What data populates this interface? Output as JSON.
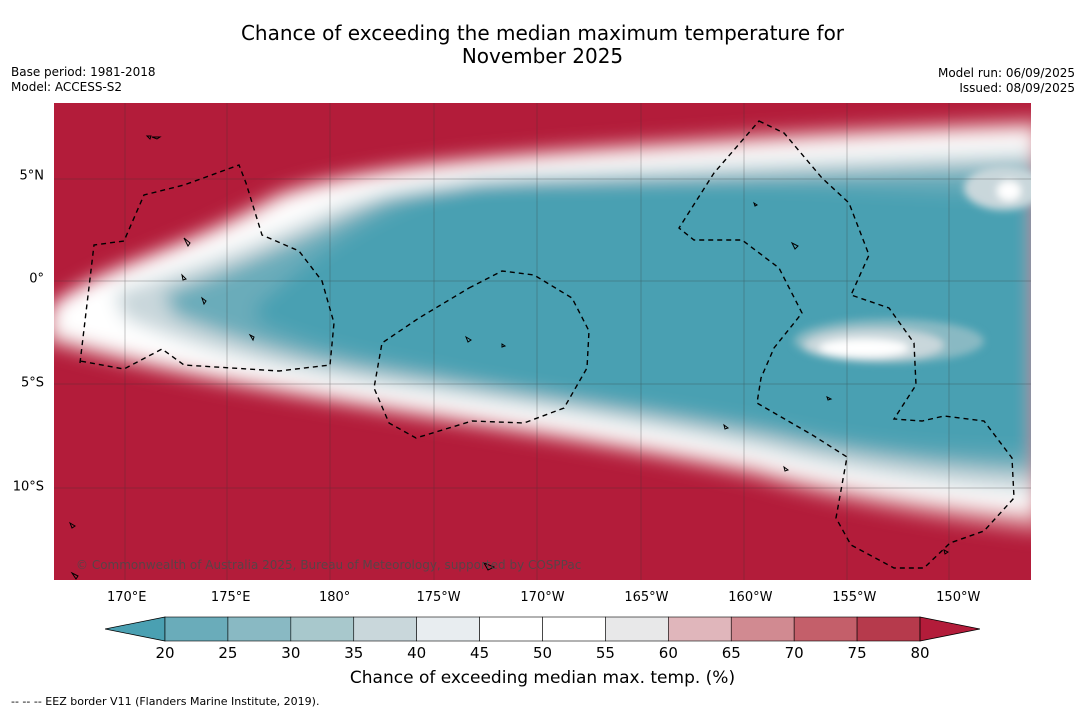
{
  "title_line1": "Chance of exceeding the median maximum temperature for",
  "title_line2": "November 2025",
  "meta_left": {
    "base_period": "Base period: 1981-2018",
    "model": "Model: ACCESS-S2"
  },
  "meta_right": {
    "model_run": "Model run: 06/09/2025",
    "issued": "Issued: 08/09/2025"
  },
  "map": {
    "extent_lon": [
      166.5,
      213.5
    ],
    "extent_lat": [
      -14.5,
      8.5
    ],
    "lon_ticks": [
      {
        "value": 170,
        "label": "170°E"
      },
      {
        "value": 175,
        "label": "175°E"
      },
      {
        "value": 180,
        "label": "180°"
      },
      {
        "value": 185,
        "label": "175°W"
      },
      {
        "value": 190,
        "label": "170°W"
      },
      {
        "value": 195,
        "label": "165°W"
      },
      {
        "value": 200,
        "label": "160°W"
      },
      {
        "value": 205,
        "label": "155°W"
      },
      {
        "value": 210,
        "label": "150°W"
      }
    ],
    "lat_ticks": [
      {
        "value": 5,
        "label": "5°N"
      },
      {
        "value": 0,
        "label": "0°"
      },
      {
        "value": -5,
        "label": "5°S"
      },
      {
        "value": -10,
        "label": "10°S"
      }
    ],
    "copyright": "© Commonwealth of Australia 2025, Bureau of Meteorology, supported by COSPPac",
    "colors": {
      "ocean_base": "#b31c3a",
      "land_outline": "#000000",
      "grid": "#333333"
    }
  },
  "colorbar": {
    "levels": [
      20,
      25,
      30,
      35,
      40,
      45,
      50,
      55,
      60,
      65,
      70,
      75,
      80
    ],
    "labels": [
      "20",
      "25",
      "30",
      "35",
      "40",
      "45",
      "50",
      "55",
      "60",
      "65",
      "70",
      "75",
      "80"
    ],
    "colors": [
      "#4aa0b2",
      "#6aacba",
      "#89b9c3",
      "#a8c8cc",
      "#c9d7db",
      "#e8edf0",
      "#ffffff",
      "#ffffff",
      "#e8e8e9",
      "#e0b6bb",
      "#d18a91",
      "#c45f6a",
      "#b63a4c",
      "#b31c3a"
    ],
    "title": "Chance of exceeding median max. temp. (%)"
  },
  "footnote": "--  --  -- EEZ border V11 (Flanders Marine Institute, 2019)."
}
